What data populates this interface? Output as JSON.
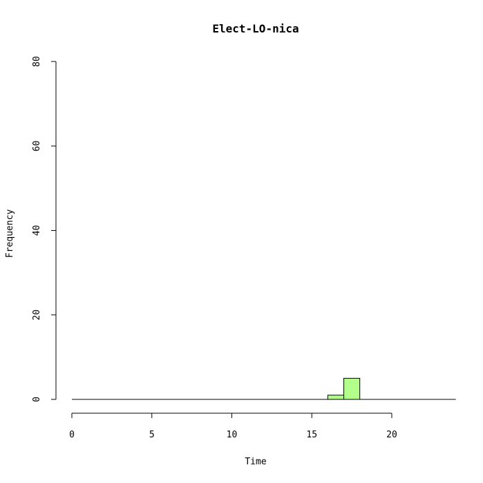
{
  "chart_data": {
    "type": "bar",
    "title": "Elect-LO-nica",
    "xlabel": "Time",
    "ylabel": "Frequency",
    "xlim": [
      0,
      24
    ],
    "ylim": [
      0,
      80
    ],
    "x_ticks": [
      0,
      5,
      10,
      15,
      20
    ],
    "y_ticks": [
      0,
      20,
      40,
      60,
      80
    ],
    "bin_width": 1,
    "bins": [
      {
        "start": 16,
        "end": 17,
        "count": 1
      },
      {
        "start": 17,
        "end": 18,
        "count": 5
      }
    ],
    "bar_color": "#b3ff8c",
    "grid": false,
    "legend": "none"
  }
}
